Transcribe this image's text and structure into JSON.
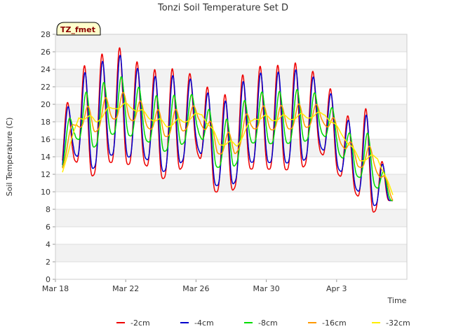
{
  "chart_data": {
    "type": "line",
    "title": "Tonzi Soil Temperature Set D",
    "xlabel": "Time",
    "ylabel": "Soil Temperature (C)",
    "badge": "TZ_fmet",
    "ylim": [
      0,
      28
    ],
    "yticks": [
      0,
      2,
      4,
      6,
      8,
      10,
      12,
      14,
      16,
      18,
      20,
      22,
      24,
      26,
      28
    ],
    "xlim": [
      0,
      20
    ],
    "x_unit": "days since Mar 18",
    "xticks": [
      {
        "x": 0,
        "label": "Mar 18"
      },
      {
        "x": 4,
        "label": "Mar 22"
      },
      {
        "x": 8,
        "label": "Mar 26"
      },
      {
        "x": 12,
        "label": "Mar 30"
      },
      {
        "x": 16,
        "label": "Apr 3"
      }
    ],
    "grid": true,
    "legend_position": "bottom",
    "series": [
      {
        "name": "-2cm",
        "color": "#ee0000",
        "amp_scale": 1.0,
        "lag": 0.0,
        "day_min": [
          10.2,
          13.8,
          11.6,
          13.4,
          13.1,
          13.3,
          11.4,
          12.3,
          14.8,
          10.0,
          9.9,
          12.6,
          12.6,
          12.5,
          12.6,
          14.7,
          12.2,
          10.0,
          7.5,
          9.0
        ],
        "day_max": [
          13.5,
          23.5,
          24.9,
          26.2,
          26.6,
          23.9,
          24.0,
          24.1,
          23.2,
          21.3,
          21.0,
          24.6,
          24.2,
          24.6,
          24.8,
          23.2,
          21.0,
          17.4,
          20.6,
          9.0
        ]
      },
      {
        "name": "-4cm",
        "color": "#0000cc",
        "amp_scale": 0.87,
        "lag": 0.03
      },
      {
        "name": "-8cm",
        "color": "#00dd00",
        "amp_scale": 0.5,
        "lag": 0.1
      },
      {
        "name": "-16cm",
        "color": "#ff9900",
        "amp_scale": 0.23,
        "lag": 0.2
      },
      {
        "name": "-32cm",
        "color": "#ffee00",
        "amp_scale": 0.05,
        "lag": 0.33
      }
    ]
  }
}
